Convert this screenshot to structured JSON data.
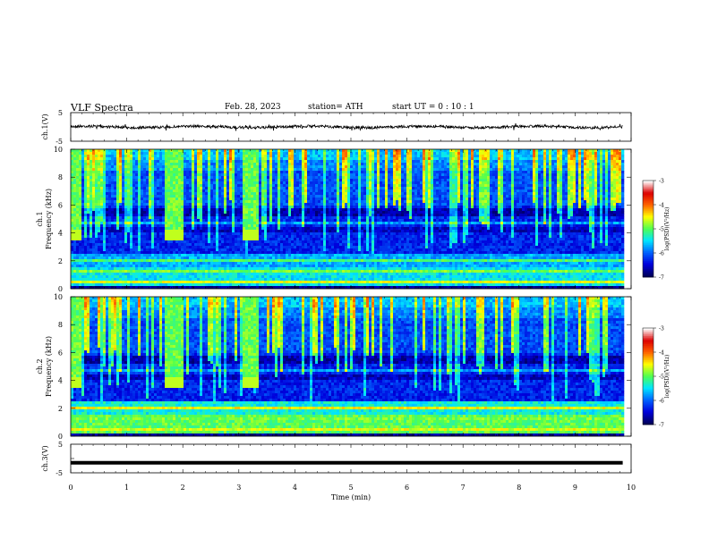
{
  "header": {
    "title": "VLF  Spectra",
    "date": "Feb. 28, 2023",
    "station": "station= ATH",
    "start_ut": "start  UT  =    0  : 10 : 1"
  },
  "chart_data": [
    {
      "type": "line",
      "name": "ch1-waveform",
      "ylabel": "ch.1(V)",
      "yticks": [
        "5",
        "-5"
      ],
      "ylim": [
        -5,
        5
      ],
      "baseline": 0,
      "trace_color": "#000000"
    },
    {
      "type": "heatmap",
      "name": "ch1-spectrogram",
      "ylabel": "ch.1\nFrequency  (kHz)",
      "ylabel_lines": [
        "ch.1",
        "Frequency  (kHz)"
      ],
      "yticks": [
        "0",
        "2",
        "4",
        "6",
        "8",
        "10"
      ],
      "ylim": [
        0,
        10
      ],
      "bursts_min": [
        [
          0.0,
          0.18
        ],
        [
          1.63,
          1.98
        ],
        [
          3.02,
          3.35
        ]
      ],
      "colorbar": {
        "label": "log(PSD)(V²/Hz)",
        "ticks": [
          "-3",
          "-4",
          "-5",
          "-6",
          "-7"
        ],
        "range": [
          -7,
          -3
        ]
      }
    },
    {
      "type": "heatmap",
      "name": "ch2-spectrogram",
      "ylabel": "ch.2\nFrequency  (kHz)",
      "ylabel_lines": [
        "ch.2",
        "Frequency  (kHz)"
      ],
      "yticks": [
        "0",
        "2",
        "4",
        "6",
        "8",
        "10"
      ],
      "ylim": [
        0,
        10
      ],
      "bursts_min": [
        [
          0.0,
          0.18
        ],
        [
          1.63,
          1.98
        ],
        [
          3.02,
          3.35
        ]
      ],
      "colorbar": {
        "label": "log(PSD)(V²/Hz)",
        "ticks": [
          "-3",
          "-4",
          "-5",
          "-6",
          "-7"
        ],
        "range": [
          -7,
          -3
        ]
      }
    },
    {
      "type": "line",
      "name": "ch3-waveform",
      "ylabel": "ch.3(V)",
      "yticks": [
        "5",
        "-5"
      ],
      "ylim": [
        -5,
        5
      ],
      "level": -1.5,
      "trace_color": "#000000"
    }
  ],
  "xaxis": {
    "label": "Time  (min)",
    "ticks": [
      "0",
      "1",
      "2",
      "3",
      "4",
      "5",
      "6",
      "7",
      "8",
      "9",
      "10"
    ],
    "xlim": [
      0,
      10
    ],
    "data_end": 9.85
  },
  "colormap": [
    "#00005a",
    "#0000dc",
    "#0064ff",
    "#00e6ff",
    "#50ff50",
    "#ffff00",
    "#ff6400",
    "#dc0000",
    "#ffffff"
  ]
}
